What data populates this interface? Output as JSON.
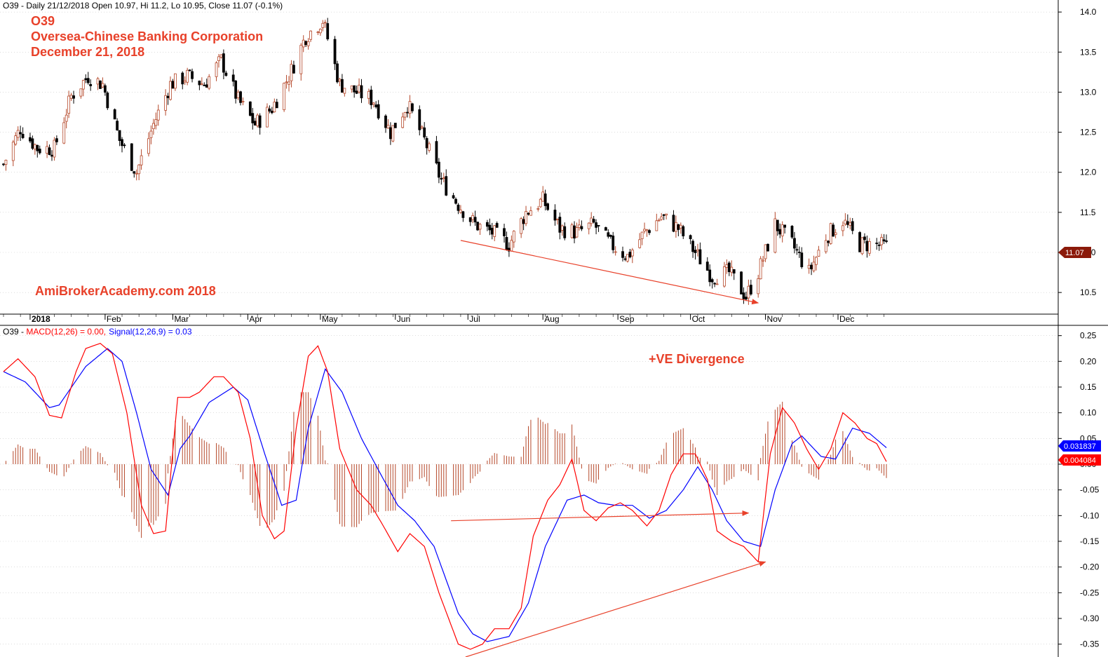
{
  "header": {
    "price_info": "O39 - Daily 21/12/2018 Open 10.97, Hi 11.2, Lo 10.95, Close 11.07 (-0.1%)",
    "macd_prefix": "O39 - ",
    "macd_label": "MACD(12,26) = 0.00,",
    "signal_label": "Signal(12,26,9) = 0.03"
  },
  "annotations": {
    "ticker": "O39",
    "company": "Oversea-Chinese Banking Corporation",
    "date": "December 21, 2018",
    "watermark": "AmiBrokerAcademy.com  2018",
    "divergence": "+VE Divergence"
  },
  "price_badge": "11.07",
  "macd_badges": {
    "signal": "0.031837",
    "hist": "0.004084"
  },
  "colors": {
    "up": "#b5482a",
    "down": "#000000",
    "macd": "#ff0000",
    "signal": "#0000ff",
    "hist": "#b5482a",
    "annotation": "#e8412a",
    "grid": "#c8c8c8"
  },
  "chart_data": [
    {
      "type": "candlestick",
      "title": "O39 - Daily 21/12/2018",
      "ylim": [
        10.23,
        14.15
      ],
      "yticks": [
        "10.5",
        "11.0",
        "11.5",
        "12.0",
        "12.5",
        "13.0",
        "13.5",
        "14.0"
      ],
      "months": [
        "2018",
        "Feb",
        "Mar",
        "Apr",
        "May",
        "Jun",
        "Jul",
        "Aug",
        "Sep",
        "Oct",
        "Nov",
        "Dec"
      ],
      "x_range": [
        "2017-12-21",
        "2018-12-21"
      ],
      "close_path": [
        [
          "2017-12-21",
          12.1
        ],
        [
          "2017-12-28",
          12.55
        ],
        [
          "2018-01-04",
          12.3
        ],
        [
          "2018-01-11",
          12.3
        ],
        [
          "2018-01-18",
          12.95
        ],
        [
          "2018-01-25",
          13.2
        ],
        [
          "2018-01-31",
          13.1
        ],
        [
          "2018-02-07",
          12.4
        ],
        [
          "2018-02-14",
          12.0
        ],
        [
          "2018-02-21",
          12.6
        ],
        [
          "2018-02-28",
          13.1
        ],
        [
          "2018-03-07",
          13.2
        ],
        [
          "2018-03-14",
          13.1
        ],
        [
          "2018-03-21",
          13.4
        ],
        [
          "2018-03-28",
          12.9
        ],
        [
          "2018-04-04",
          12.6
        ],
        [
          "2018-04-11",
          12.8
        ],
        [
          "2018-04-18",
          13.2
        ],
        [
          "2018-04-25",
          13.7
        ],
        [
          "2018-05-02",
          13.9
        ],
        [
          "2018-05-09",
          13.1
        ],
        [
          "2018-05-16",
          13.0
        ],
        [
          "2018-05-23",
          12.9
        ],
        [
          "2018-05-30",
          12.5
        ],
        [
          "2018-06-06",
          12.85
        ],
        [
          "2018-06-13",
          12.4
        ],
        [
          "2018-06-20",
          11.9
        ],
        [
          "2018-06-27",
          11.6
        ],
        [
          "2018-07-04",
          11.35
        ],
        [
          "2018-07-11",
          11.25
        ],
        [
          "2018-07-18",
          11.1
        ],
        [
          "2018-07-25",
          11.5
        ],
        [
          "2018-08-01",
          11.65
        ],
        [
          "2018-08-08",
          11.3
        ],
        [
          "2018-08-15",
          11.25
        ],
        [
          "2018-08-22",
          11.35
        ],
        [
          "2018-08-29",
          11.1
        ],
        [
          "2018-09-05",
          10.95
        ],
        [
          "2018-09-12",
          11.25
        ],
        [
          "2018-09-19",
          11.45
        ],
        [
          "2018-09-26",
          11.3
        ],
        [
          "2018-10-03",
          11.0
        ],
        [
          "2018-10-10",
          10.7
        ],
        [
          "2018-10-17",
          10.75
        ],
        [
          "2018-10-24",
          10.45
        ],
        [
          "2018-10-29",
          10.75
        ],
        [
          "2018-11-05",
          11.35
        ],
        [
          "2018-11-12",
          11.1
        ],
        [
          "2018-11-19",
          10.75
        ],
        [
          "2018-11-26",
          11.2
        ],
        [
          "2018-12-03",
          11.4
        ],
        [
          "2018-12-10",
          11.1
        ],
        [
          "2018-12-17",
          11.1
        ],
        [
          "2018-12-21",
          11.07
        ]
      ],
      "trendline": [
        [
          "2018-06-28",
          11.15
        ],
        [
          "2018-10-29",
          10.37
        ]
      ]
    },
    {
      "type": "line",
      "title": "MACD(12,26), Signal(12,26,9)",
      "ylim": [
        -0.375,
        0.27
      ],
      "yticks": [
        "0.25",
        "0.20",
        "0.15",
        "0.10",
        "0.05",
        "0.00",
        "-0.05",
        "-0.10",
        "-0.15",
        "-0.20",
        "-0.25",
        "-0.30",
        "-0.35"
      ],
      "series": [
        {
          "name": "MACD(12,26)",
          "points": [
            [
              "2017-12-21",
              0.18
            ],
            [
              "2017-12-27",
              0.205
            ],
            [
              "2018-01-03",
              0.17
            ],
            [
              "2018-01-09",
              0.095
            ],
            [
              "2018-01-14",
              0.09
            ],
            [
              "2018-01-20",
              0.18
            ],
            [
              "2018-01-24",
              0.225
            ],
            [
              "2018-01-30",
              0.235
            ],
            [
              "2018-02-04",
              0.215
            ],
            [
              "2018-02-10",
              0.1
            ],
            [
              "2018-02-16",
              -0.08
            ],
            [
              "2018-02-21",
              -0.135
            ],
            [
              "2018-02-26",
              -0.13
            ],
            [
              "2018-03-03",
              0.13
            ],
            [
              "2018-03-08",
              0.13
            ],
            [
              "2018-03-12",
              0.14
            ],
            [
              "2018-03-18",
              0.17
            ],
            [
              "2018-03-22",
              0.17
            ],
            [
              "2018-03-28",
              0.14
            ],
            [
              "2018-04-02",
              0.05
            ],
            [
              "2018-04-07",
              -0.1
            ],
            [
              "2018-04-12",
              -0.145
            ],
            [
              "2018-04-16",
              -0.13
            ],
            [
              "2018-04-21",
              0.07
            ],
            [
              "2018-04-26",
              0.21
            ],
            [
              "2018-04-30",
              0.23
            ],
            [
              "2018-05-04",
              0.18
            ],
            [
              "2018-05-09",
              0.03
            ],
            [
              "2018-05-16",
              -0.05
            ],
            [
              "2018-05-22",
              -0.08
            ],
            [
              "2018-05-27",
              -0.12
            ],
            [
              "2018-06-02",
              -0.17
            ],
            [
              "2018-06-07",
              -0.135
            ],
            [
              "2018-06-13",
              -0.16
            ],
            [
              "2018-06-19",
              -0.25
            ],
            [
              "2018-06-27",
              -0.35
            ],
            [
              "2018-07-02",
              -0.36
            ],
            [
              "2018-07-07",
              -0.35
            ],
            [
              "2018-07-12",
              -0.32
            ],
            [
              "2018-07-18",
              -0.32
            ],
            [
              "2018-07-23",
              -0.28
            ],
            [
              "2018-07-28",
              -0.14
            ],
            [
              "2018-08-03",
              -0.07
            ],
            [
              "2018-08-08",
              -0.04
            ],
            [
              "2018-08-13",
              0.01
            ],
            [
              "2018-08-18",
              -0.09
            ],
            [
              "2018-08-23",
              -0.11
            ],
            [
              "2018-08-28",
              -0.085
            ],
            [
              "2018-09-02",
              -0.075
            ],
            [
              "2018-09-07",
              -0.09
            ],
            [
              "2018-09-13",
              -0.12
            ],
            [
              "2018-09-18",
              -0.09
            ],
            [
              "2018-09-23",
              -0.02
            ],
            [
              "2018-09-28",
              0.02
            ],
            [
              "2018-10-03",
              0.02
            ],
            [
              "2018-10-08",
              -0.03
            ],
            [
              "2018-10-12",
              -0.13
            ],
            [
              "2018-10-18",
              -0.15
            ],
            [
              "2018-10-23",
              -0.16
            ],
            [
              "2018-10-29",
              -0.19
            ],
            [
              "2018-11-03",
              0.02
            ],
            [
              "2018-11-08",
              0.11
            ],
            [
              "2018-11-13",
              0.08
            ],
            [
              "2018-11-18",
              0.03
            ],
            [
              "2018-11-23",
              -0.01
            ],
            [
              "2018-11-28",
              0.03
            ],
            [
              "2018-12-03",
              0.1
            ],
            [
              "2018-12-08",
              0.08
            ],
            [
              "2018-12-13",
              0.05
            ],
            [
              "2018-12-17",
              0.04
            ],
            [
              "2018-12-21",
              0.005
            ]
          ]
        },
        {
          "name": "Signal(12,26,9)",
          "points": [
            [
              "2017-12-21",
              0.18
            ],
            [
              "2017-12-30",
              0.16
            ],
            [
              "2018-01-09",
              0.11
            ],
            [
              "2018-01-13",
              0.115
            ],
            [
              "2018-01-24",
              0.19
            ],
            [
              "2018-02-02",
              0.225
            ],
            [
              "2018-02-08",
              0.2
            ],
            [
              "2018-02-14",
              0.1
            ],
            [
              "2018-02-20",
              -0.01
            ],
            [
              "2018-02-27",
              -0.06
            ],
            [
              "2018-03-04",
              0.03
            ],
            [
              "2018-03-08",
              0.055
            ],
            [
              "2018-03-16",
              0.12
            ],
            [
              "2018-03-26",
              0.15
            ],
            [
              "2018-04-01",
              0.125
            ],
            [
              "2018-04-08",
              0.02
            ],
            [
              "2018-04-15",
              -0.08
            ],
            [
              "2018-04-21",
              -0.07
            ],
            [
              "2018-04-26",
              0.07
            ],
            [
              "2018-05-03",
              0.185
            ],
            [
              "2018-05-10",
              0.14
            ],
            [
              "2018-05-18",
              0.05
            ],
            [
              "2018-05-26",
              -0.02
            ],
            [
              "2018-06-02",
              -0.08
            ],
            [
              "2018-06-09",
              -0.11
            ],
            [
              "2018-06-17",
              -0.16
            ],
            [
              "2018-06-27",
              -0.29
            ],
            [
              "2018-07-03",
              -0.33
            ],
            [
              "2018-07-09",
              -0.345
            ],
            [
              "2018-07-18",
              -0.335
            ],
            [
              "2018-07-26",
              -0.27
            ],
            [
              "2018-08-02",
              -0.16
            ],
            [
              "2018-08-11",
              -0.07
            ],
            [
              "2018-08-18",
              -0.06
            ],
            [
              "2018-08-24",
              -0.075
            ],
            [
              "2018-08-31",
              -0.08
            ],
            [
              "2018-09-07",
              -0.08
            ],
            [
              "2018-09-14",
              -0.105
            ],
            [
              "2018-09-21",
              -0.09
            ],
            [
              "2018-09-28",
              -0.05
            ],
            [
              "2018-10-04",
              -0.005
            ],
            [
              "2018-10-10",
              -0.05
            ],
            [
              "2018-10-16",
              -0.11
            ],
            [
              "2018-10-23",
              -0.15
            ],
            [
              "2018-10-30",
              -0.16
            ],
            [
              "2018-11-05",
              -0.05
            ],
            [
              "2018-11-12",
              0.04
            ],
            [
              "2018-11-16",
              0.055
            ],
            [
              "2018-11-24",
              0.015
            ],
            [
              "2018-11-30",
              0.01
            ],
            [
              "2018-12-07",
              0.07
            ],
            [
              "2018-12-14",
              0.06
            ],
            [
              "2018-12-21",
              0.032
            ]
          ]
        }
      ],
      "trendlines": [
        [
          [
            "2018-06-24",
            -0.11
          ],
          [
            "2018-10-25",
            -0.095
          ]
        ],
        [
          [
            "2018-06-30",
            -0.375
          ],
          [
            "2018-11-01",
            -0.19
          ]
        ]
      ]
    }
  ]
}
